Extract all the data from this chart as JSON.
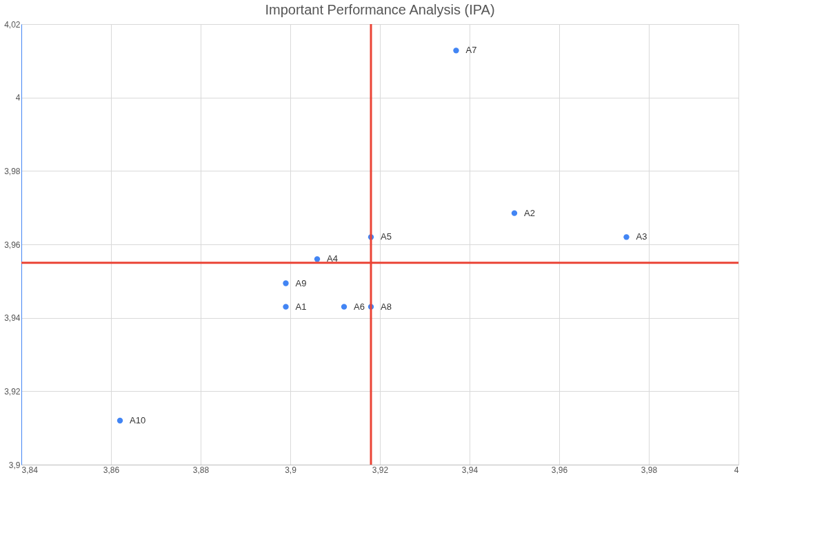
{
  "chart_data": {
    "type": "scatter",
    "title": "Important Performance Analysis (IPA)",
    "x": [
      3.899,
      3.95,
      3.975,
      3.906,
      3.918,
      3.912,
      3.937,
      3.918,
      3.899,
      3.862
    ],
    "series": [
      {
        "color": "#4285f4",
        "values": [
          3.943,
          3.9685,
          3.962,
          3.956,
          3.962,
          3.943,
          4.0128,
          3.943,
          3.9494,
          3.912
        ]
      }
    ],
    "annotations": [
      {
        "text": "A1",
        "x": 3.899,
        "y": 3.943
      },
      {
        "text": "A2",
        "x": 3.95,
        "y": 3.9685
      },
      {
        "text": "A3",
        "x": 3.975,
        "y": 3.962
      },
      {
        "text": "A4",
        "x": 3.906,
        "y": 3.956
      },
      {
        "text": "A5",
        "x": 3.918,
        "y": 3.962
      },
      {
        "text": "A6",
        "x": 3.912,
        "y": 3.943
      },
      {
        "text": "A7",
        "x": 3.937,
        "y": 4.0128
      },
      {
        "text": "A8",
        "x": 3.918,
        "y": 3.943
      },
      {
        "text": "A9",
        "x": 3.899,
        "y": 3.9494
      },
      {
        "text": "A10",
        "x": 3.862,
        "y": 3.912
      }
    ],
    "ref_lines": [
      {
        "axis": "x",
        "value": 3.918,
        "color": "#ea4335"
      },
      {
        "axis": "y",
        "value": 3.955,
        "color": "#ea4335"
      }
    ],
    "xlim": [
      3.84,
      4
    ],
    "ylim": [
      3.9,
      4.02
    ],
    "xticks": [
      {
        "value": 3.84,
        "label": "3,84"
      },
      {
        "value": 3.86,
        "label": "3,86"
      },
      {
        "value": 3.88,
        "label": "3,88"
      },
      {
        "value": 3.9,
        "label": "3,9"
      },
      {
        "value": 3.92,
        "label": "3,92"
      },
      {
        "value": 3.94,
        "label": "3,94"
      },
      {
        "value": 3.96,
        "label": "3,96"
      },
      {
        "value": 3.98,
        "label": "3,98"
      },
      4
    ],
    "yticks": [
      {
        "value": 3.9,
        "label": "3,9"
      },
      {
        "value": 3.92,
        "label": "3,92"
      },
      {
        "value": 3.94,
        "label": "3,94"
      },
      {
        "value": 3.96,
        "label": "3,96"
      },
      {
        "value": 3.98,
        "label": "3,98"
      },
      4,
      {
        "value": 4.02,
        "label": "4,02"
      }
    ],
    "grid": true,
    "marker": "circle"
  }
}
